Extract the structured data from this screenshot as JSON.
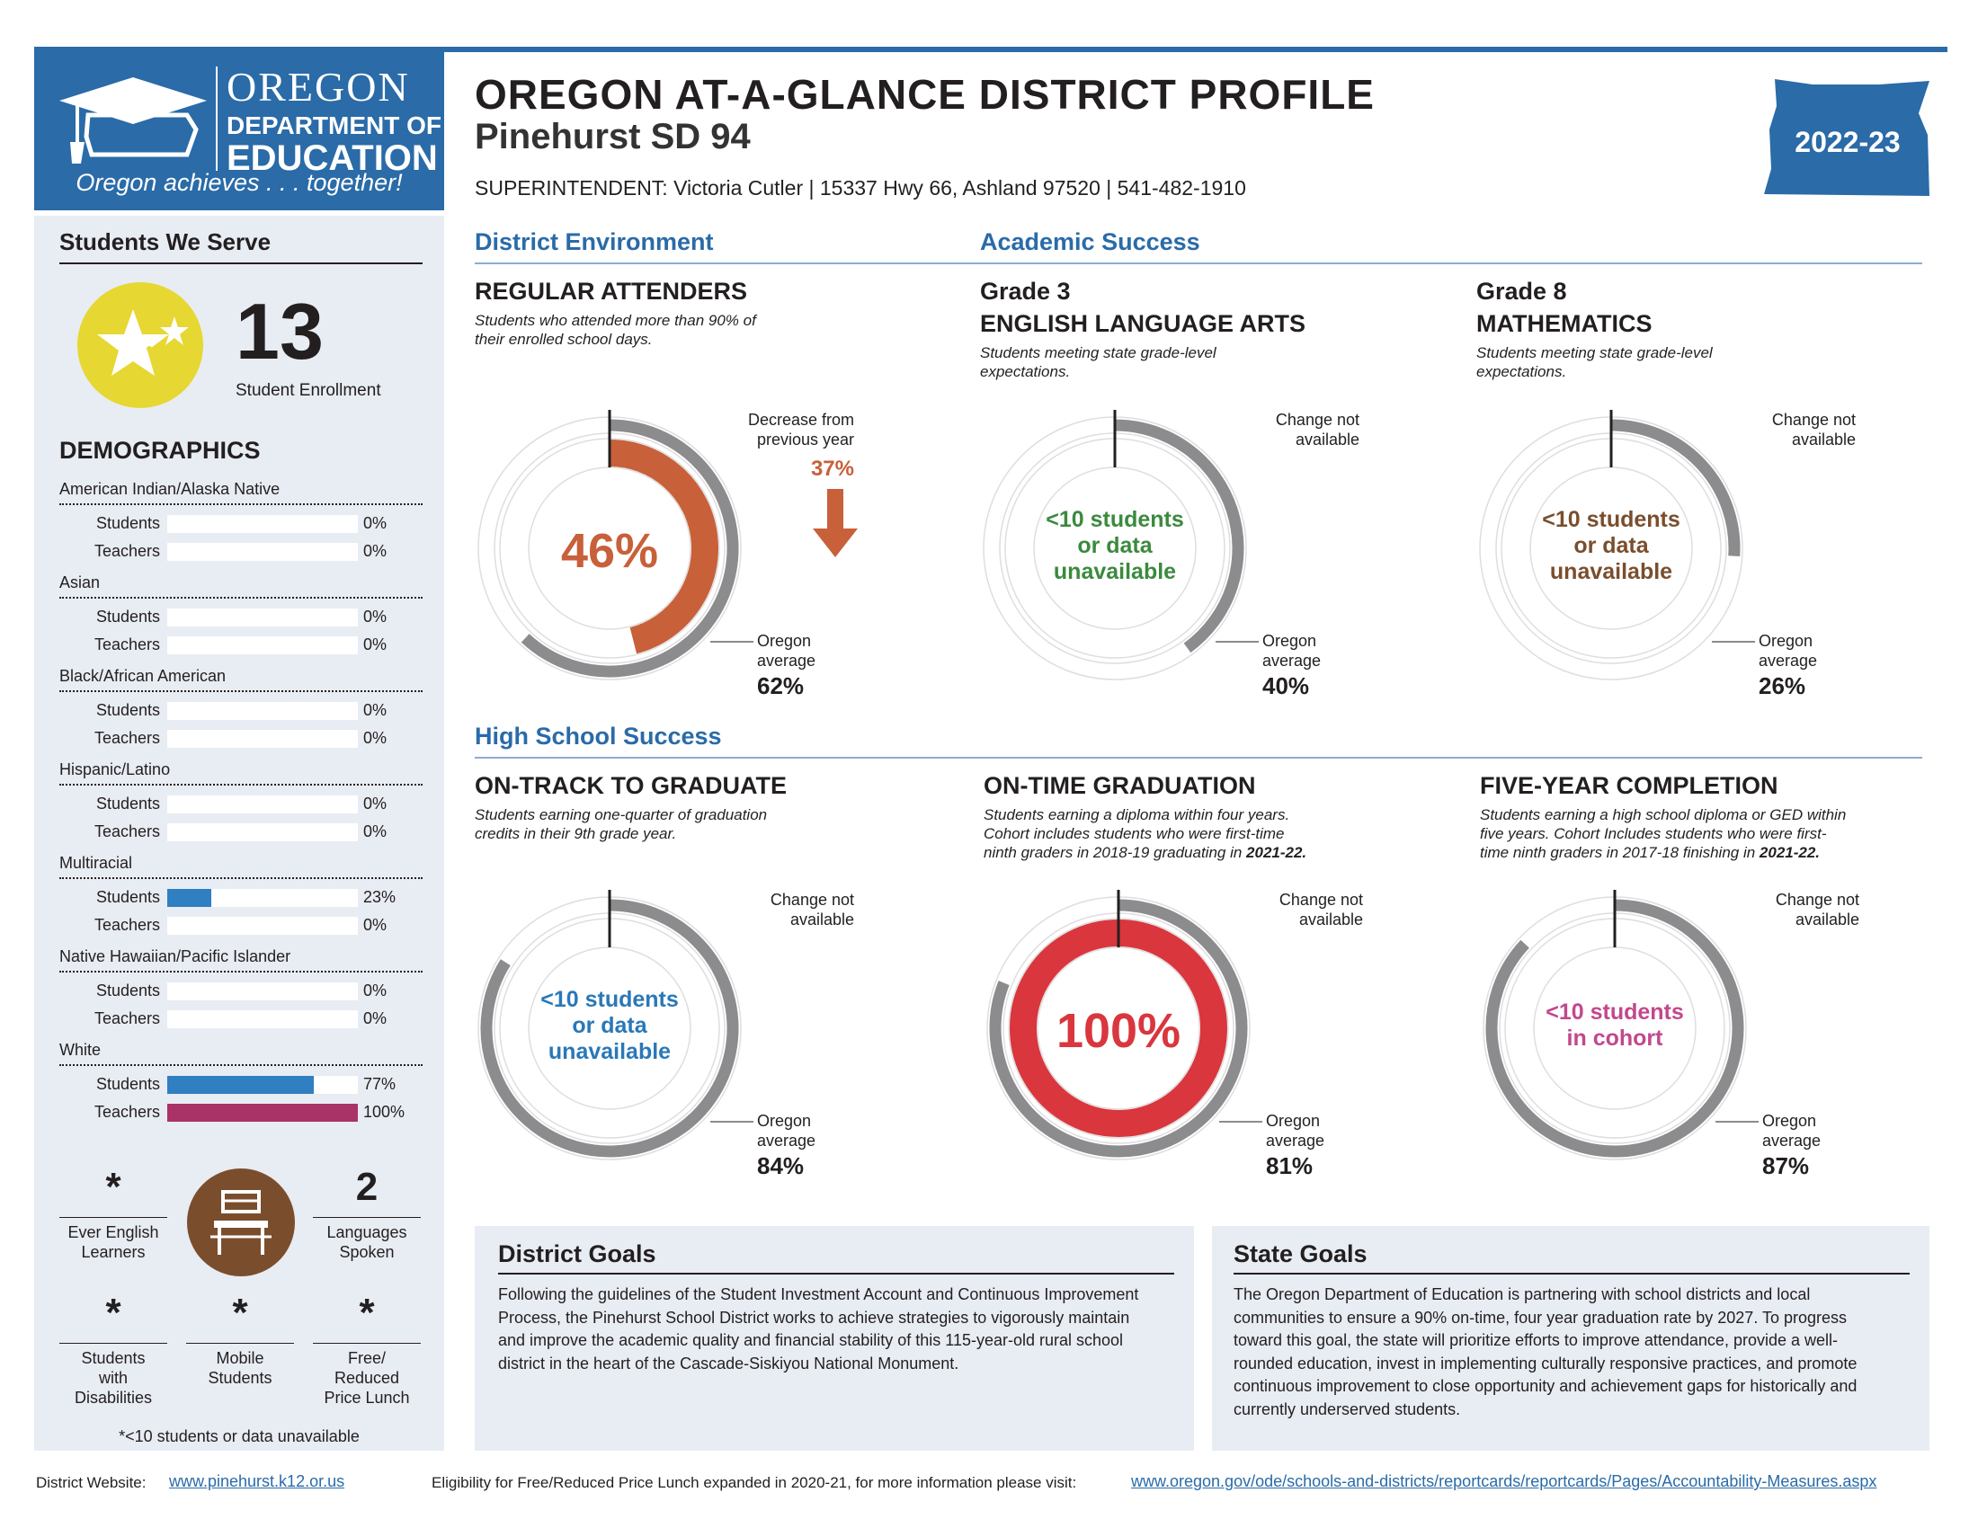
{
  "logo": {
    "state": "OREGON",
    "dept_line1": "DEPARTMENT OF",
    "dept_line2": "EDUCATION",
    "tagline": "Oregon achieves . . . together!"
  },
  "header": {
    "title": "OREGON AT-A-GLANCE DISTRICT PROFILE",
    "district": "Pinehurst SD 94",
    "contact": "SUPERINTENDENT: Victoria Cutler  | 15337 Hwy 66, Ashland 97520 | 541-482-1910",
    "year": "2022-23"
  },
  "sidebar": {
    "heading": "Students We Serve",
    "enrollment": "13",
    "enrollment_label": "Student Enrollment",
    "demographics_heading": "DEMOGRAPHICS",
    "students_label": "Students",
    "teachers_label": "Teachers",
    "groups": [
      {
        "name": "American Indian/Alaska Native",
        "students": "0%",
        "students_value": 0,
        "teachers": "0%",
        "teachers_value": 0
      },
      {
        "name": "Asian",
        "students": "0%",
        "students_value": 0,
        "teachers": "0%",
        "teachers_value": 0
      },
      {
        "name": "Black/African American",
        "students": "0%",
        "students_value": 0,
        "teachers": "0%",
        "teachers_value": 0
      },
      {
        "name": "Hispanic/Latino",
        "students": "0%",
        "students_value": 0,
        "teachers": "0%",
        "teachers_value": 0
      },
      {
        "name": "Multiracial",
        "students": "23%",
        "students_value": 23,
        "teachers": "0%",
        "teachers_value": 0
      },
      {
        "name": "Native Hawaiian/Pacific Islander",
        "students": "0%",
        "students_value": 0,
        "teachers": "0%",
        "teachers_value": 0
      },
      {
        "name": "White",
        "students": "77%",
        "students_value": 77,
        "teachers": "100%",
        "teachers_value": 100
      }
    ],
    "colors": {
      "students_bar": "#2f7fc1",
      "teachers_bar": "#a93366"
    },
    "stats": {
      "ever_english_learners": {
        "value": "*",
        "label_line1": "Ever English",
        "label_line2": "Learners"
      },
      "languages_spoken": {
        "value": "2",
        "label_line1": "Languages",
        "label_line2": "Spoken"
      },
      "students_with_disabilities": {
        "value": "*",
        "label_line1": "Students",
        "label_line2": "with",
        "label_line3": "Disabilities"
      },
      "mobile_students": {
        "value": "*",
        "label_line1": "Mobile",
        "label_line2": "Students"
      },
      "free_reduced_lunch": {
        "value": "*",
        "label_line1": "Free/",
        "label_line2": "Reduced",
        "label_line3": "Price Lunch"
      }
    },
    "footnote": "*<10 students or data unavailable"
  },
  "sections": {
    "district_environment": "District Environment",
    "academic_success": "Academic Success",
    "high_school_success": "High School Success"
  },
  "common": {
    "oregon_label_line1": "Oregon",
    "oregon_label_line2": "average",
    "change_na_line1": "Change not",
    "change_na_line2": "available",
    "small_n_line1": "<10 students",
    "small_n_line2": "or data",
    "small_n_line3": "unavailable"
  },
  "cards": {
    "regular_attenders": {
      "title": "REGULAR ATTENDERS",
      "desc_line1": "Students who attended more than 90% of",
      "desc_line2": "their enrolled school days.",
      "value": "46%",
      "value_pct": 46,
      "oregon_avg": "62%",
      "oregon_pct": 62,
      "change_line1": "Decrease from",
      "change_line2": "previous year",
      "change_value": "37%",
      "color": "#c8603a"
    },
    "grade3_ela": {
      "title_line1": "Grade 3",
      "title_line2": "ENGLISH LANGUAGE ARTS",
      "desc_line1": "Students meeting state grade-level",
      "desc_line2": "expectations.",
      "oregon_avg": "40%",
      "oregon_pct": 40,
      "color": "#3b8a3e"
    },
    "grade8_math": {
      "title_line1": "Grade 8",
      "title_line2": "MATHEMATICS",
      "desc_line1": "Students meeting state grade-level",
      "desc_line2": "expectations.",
      "oregon_avg": "26%",
      "oregon_pct": 26,
      "color": "#7a4e2d"
    },
    "on_track": {
      "title": "ON-TRACK TO GRADUATE",
      "desc_line1": "Students earning one-quarter of graduation",
      "desc_line2": "credits in their 9th grade year.",
      "oregon_avg": "84%",
      "oregon_pct": 84,
      "color": "#2a78b8"
    },
    "on_time_graduation": {
      "title": "ON-TIME GRADUATION",
      "desc_line1": "Students earning a diploma within four years.",
      "desc_line2": "Cohort includes students who were first-time",
      "desc_line3_a": "ninth graders in 2018-19 graduating in ",
      "desc_line3_b": "2021-22.",
      "value": "100%",
      "value_pct": 100,
      "oregon_avg": "81%",
      "oregon_pct": 81,
      "color": "#d9363e"
    },
    "five_year_completion": {
      "title": "FIVE-YEAR COMPLETION",
      "desc_line1": "Students earning a high school diploma or GED within",
      "desc_line2": "five years. Cohort Includes students who were first-",
      "desc_line3_a": "time ninth graders in 2017-18 finishing in ",
      "desc_line3_b": "2021-22.",
      "center_line1": "<10 students",
      "center_line2": "in cohort",
      "oregon_avg": "87%",
      "oregon_pct": 87,
      "color": "#c2488d"
    }
  },
  "goals": {
    "district_heading": "District Goals",
    "district_lines": [
      "Following the guidelines of the Student Investment Account and Continuous Improvement",
      "Process, the Pinehurst School District works to achieve strategies to vigorously maintain",
      "and improve the academic quality and financial stability of this 115-year-old rural school",
      "district in the heart of the Cascade-Siskiyou National Monument."
    ],
    "state_heading": "State Goals",
    "state_lines": [
      "The Oregon Department of Education is partnering with school districts and local",
      "communities to ensure a 90% on-time, four year graduation rate by 2027. To progress",
      "toward this goal, the state will prioritize efforts to improve attendance, provide a well-",
      "rounded education, invest in implementing culturally responsive practices, and promote",
      "continuous improvement to close opportunity and achievement gaps for historically and",
      "currently underserved students."
    ]
  },
  "footer": {
    "website_label": "District Website:",
    "website": "www.pinehurst.k12.or.us",
    "frl_note": "Eligibility for Free/Reduced Price Lunch expanded in 2020-21, for more information please visit:",
    "frl_link": "www.oregon.gov/ode/schools-and-districts/reportcards/reportcards/Pages/Accountability-Measures.aspx"
  },
  "theme": {
    "brand_blue": "#2a6ba8",
    "panel_bg": "#e8ecf3",
    "ring_gray": "#8c8c8e",
    "star_yellow": "#e6d732",
    "icon_brown": "#7a4e2d"
  }
}
